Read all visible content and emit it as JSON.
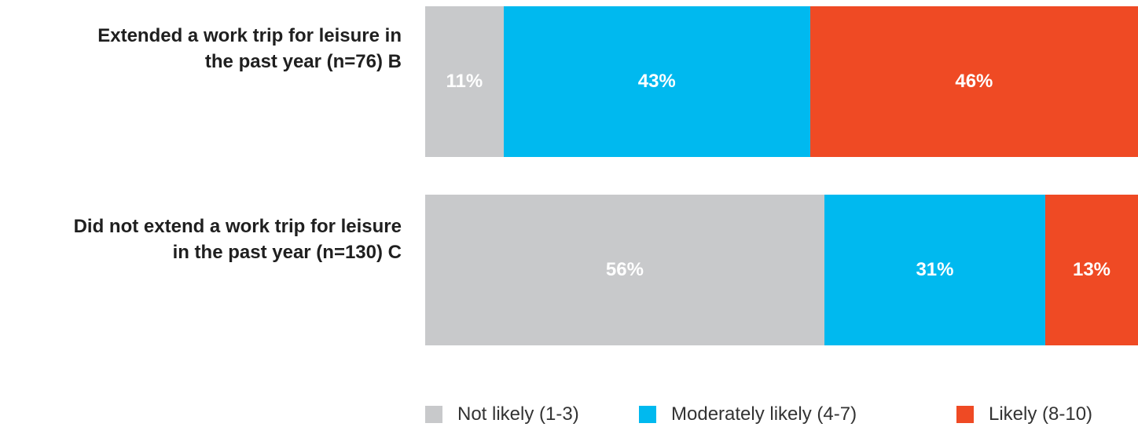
{
  "chart_data": {
    "type": "bar",
    "orientation": "horizontal",
    "stacked": true,
    "categories": [
      [
        "Extended a work trip for leisure in",
        "the past year (n=76) B"
      ],
      [
        "Did not extend a work trip for leisure",
        "in the past year (n=130) C"
      ]
    ],
    "series": [
      {
        "name": "Not likely (1-3)",
        "color": "#c8c9cb",
        "values": [
          11,
          56
        ],
        "labels": [
          "11%",
          "56%"
        ]
      },
      {
        "name": "Moderately likely (4-7)",
        "color": "#00b9ef",
        "values": [
          43,
          31
        ],
        "labels": [
          "43%",
          "31%"
        ]
      },
      {
        "name": "Likely (8-10)",
        "color": "#ef4a24",
        "values": [
          46,
          13
        ],
        "labels": [
          "46%",
          "13%"
        ]
      }
    ],
    "xlim": [
      0,
      100
    ],
    "grid": false,
    "legend_position": "bottom",
    "title": "",
    "xlabel": "",
    "ylabel": ""
  }
}
